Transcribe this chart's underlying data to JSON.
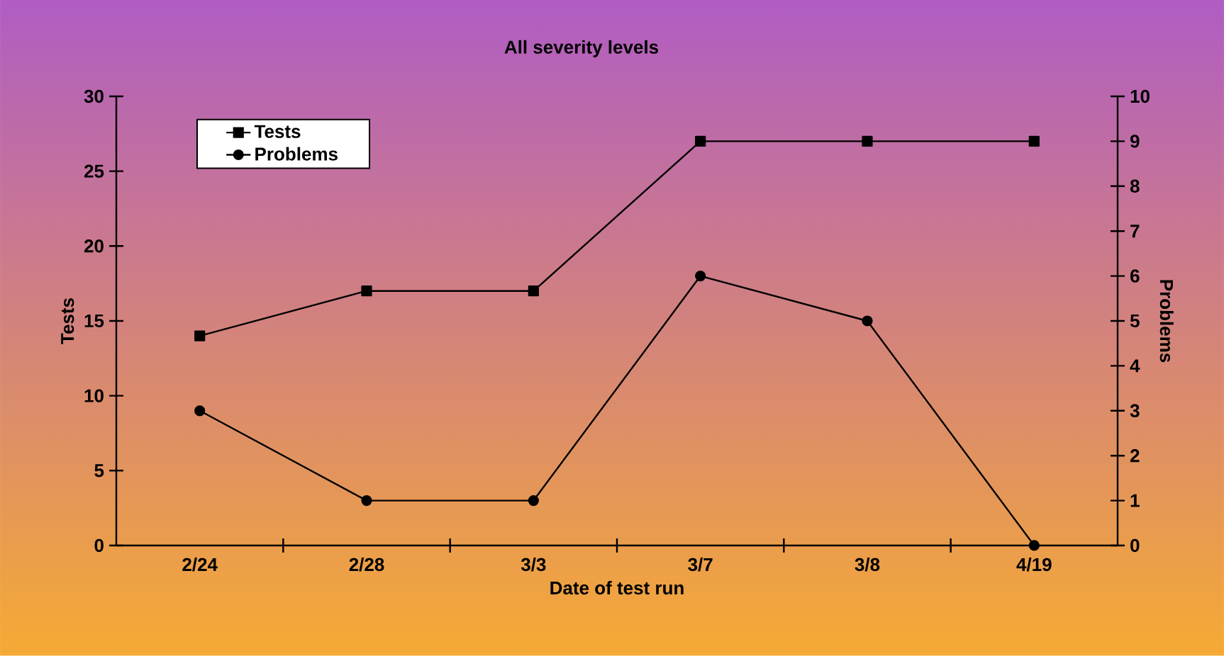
{
  "chart_data": {
    "type": "line",
    "title": "All severity levels",
    "xlabel": "Date of test run",
    "ylabel": "Tests",
    "y2label": "Problems",
    "categories": [
      "2/24",
      "2/28",
      "3/3",
      "3/7",
      "3/8",
      "4/19"
    ],
    "series": [
      {
        "name": "Tests",
        "color": "#000000",
        "marker": "square",
        "values": [
          14,
          17,
          17,
          27,
          27,
          27
        ]
      },
      {
        "name": "Problems",
        "color": "#000000",
        "marker": "circle",
        "axis": "y2",
        "values": [
          3,
          1,
          1,
          6,
          5,
          0
        ]
      }
    ],
    "ylim": [
      0,
      30
    ],
    "yticks": [
      0,
      5,
      10,
      15,
      20,
      25,
      30
    ],
    "y2lim": [
      0,
      10
    ],
    "y2ticks": [
      0,
      1,
      2,
      3,
      4,
      5,
      6,
      7,
      8,
      9,
      10
    ],
    "legend": "top left",
    "grid": false,
    "line_style": "solid"
  }
}
